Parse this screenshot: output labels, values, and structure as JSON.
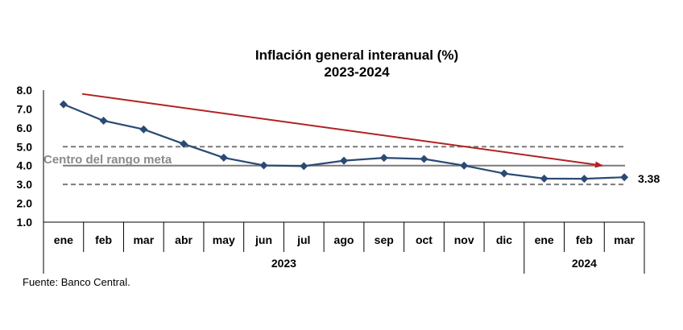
{
  "chart_data": {
    "type": "line",
    "title": "Inflación general interanual (%)",
    "subtitle": "2023-2024",
    "categories": [
      "ene",
      "feb",
      "mar",
      "abr",
      "may",
      "jun",
      "jul",
      "ago",
      "sep",
      "oct",
      "nov",
      "dic",
      "ene",
      "feb",
      "mar"
    ],
    "year_groups": [
      {
        "label": "2023",
        "count": 12
      },
      {
        "label": "2024",
        "count": 3
      }
    ],
    "series": [
      {
        "values": [
          7.25,
          6.38,
          5.92,
          5.15,
          4.42,
          4.01,
          3.97,
          4.26,
          4.41,
          4.35,
          4.0,
          3.58,
          3.31,
          3.3,
          3.38
        ],
        "color": "#2a4a74"
      }
    ],
    "ylim": [
      1.0,
      8.0
    ],
    "yticks": [
      "1.0",
      "2.0",
      "3.0",
      "4.0",
      "5.0",
      "6.0",
      "7.0",
      "8.0"
    ],
    "target_center": 4.0,
    "target_center_label": "Centro del rango meta",
    "target_range": [
      3.0,
      5.0
    ],
    "last_value_label": "3.38",
    "trend_arrow": {
      "from_value": 7.8,
      "to_value": 4.0,
      "color": "#b22222"
    },
    "source": "Fuente: Banco Central."
  }
}
